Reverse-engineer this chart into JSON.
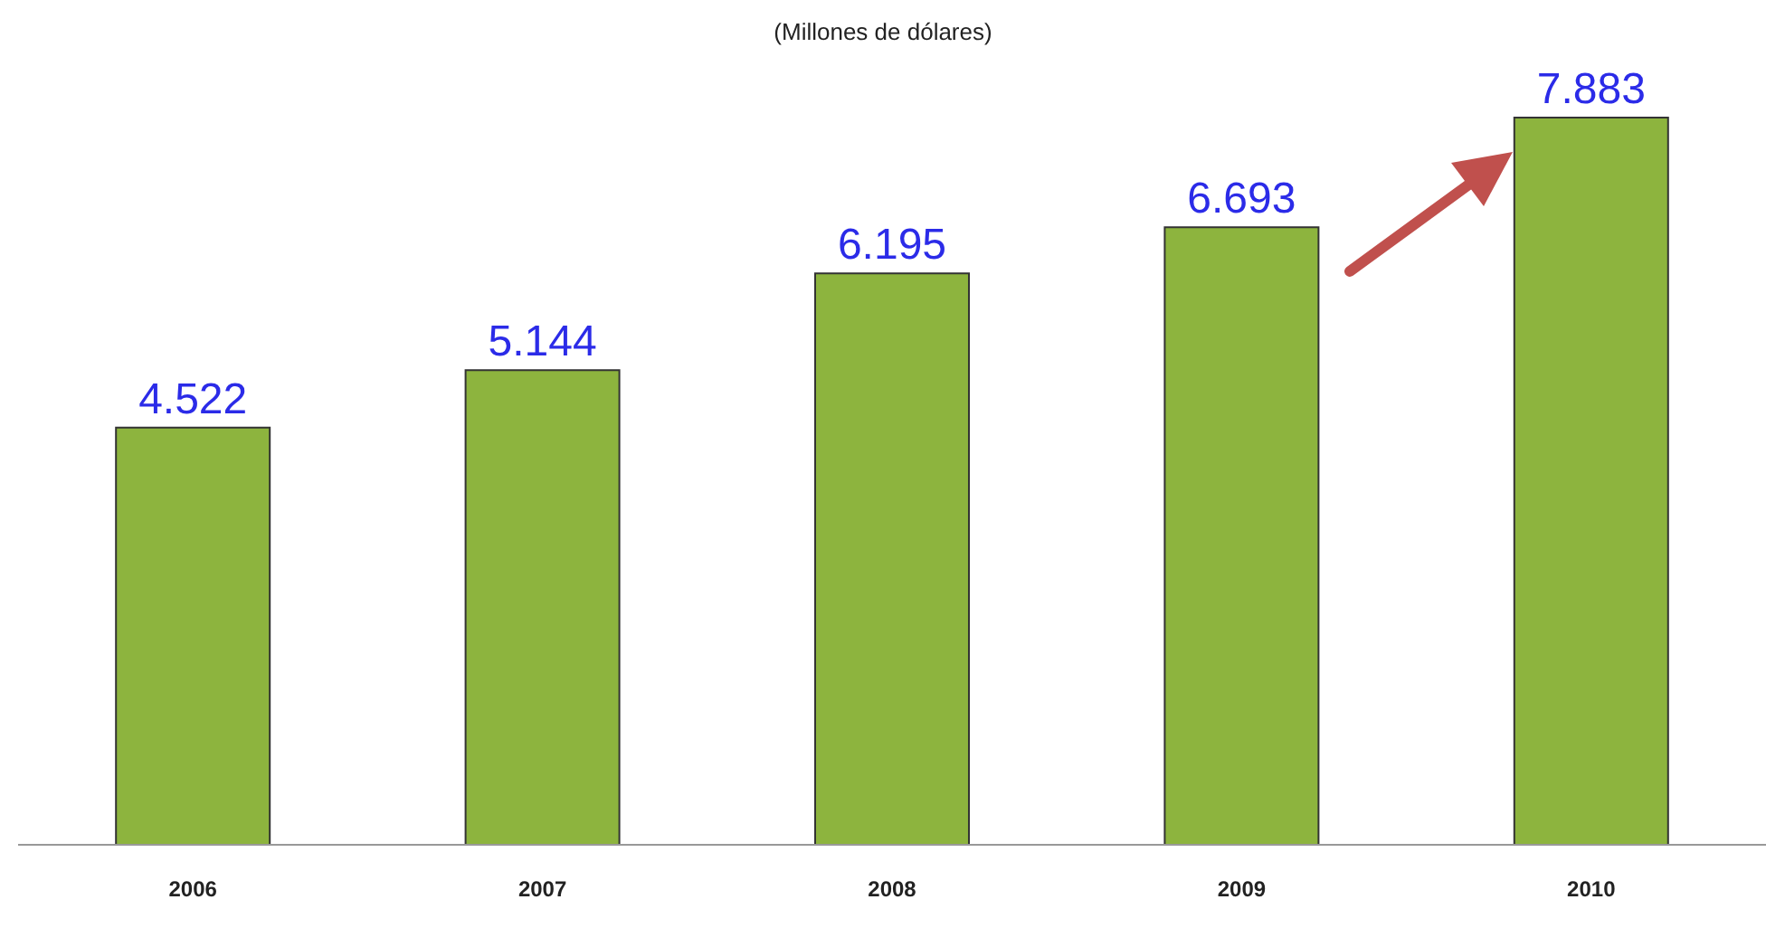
{
  "chart_data": {
    "type": "bar",
    "subtitle": "(Millones de dólares)",
    "categories": [
      "2006",
      "2007",
      "2008",
      "2009",
      "2010"
    ],
    "values": [
      4522,
      5144,
      6195,
      6693,
      7883
    ],
    "value_labels": [
      "4.522",
      "5.144",
      "6.195",
      "6.693",
      "7.883"
    ],
    "color": "#8db43e",
    "tick_labels": "x"
  }
}
